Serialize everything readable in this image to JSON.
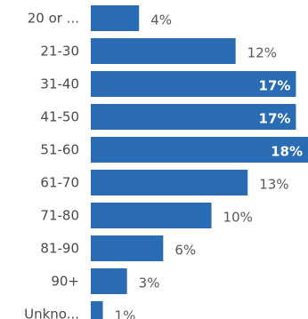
{
  "chart_data": {
    "type": "bar",
    "orientation": "horizontal",
    "categories": [
      "20 or ...",
      "21-30",
      "31-40",
      "41-50",
      "51-60",
      "61-70",
      "71-80",
      "81-90",
      "90+",
      "Unkno..."
    ],
    "values": [
      4,
      12,
      17,
      17,
      18,
      13,
      10,
      6,
      3,
      1
    ],
    "value_labels": [
      "4%",
      "12%",
      "17%",
      "17%",
      "18%",
      "13%",
      "10%",
      "6%",
      "3%",
      "1%"
    ],
    "xlim": [
      0,
      18
    ],
    "bar_color": "#2a6cb3",
    "title": "",
    "xlabel": "",
    "ylabel": ""
  }
}
